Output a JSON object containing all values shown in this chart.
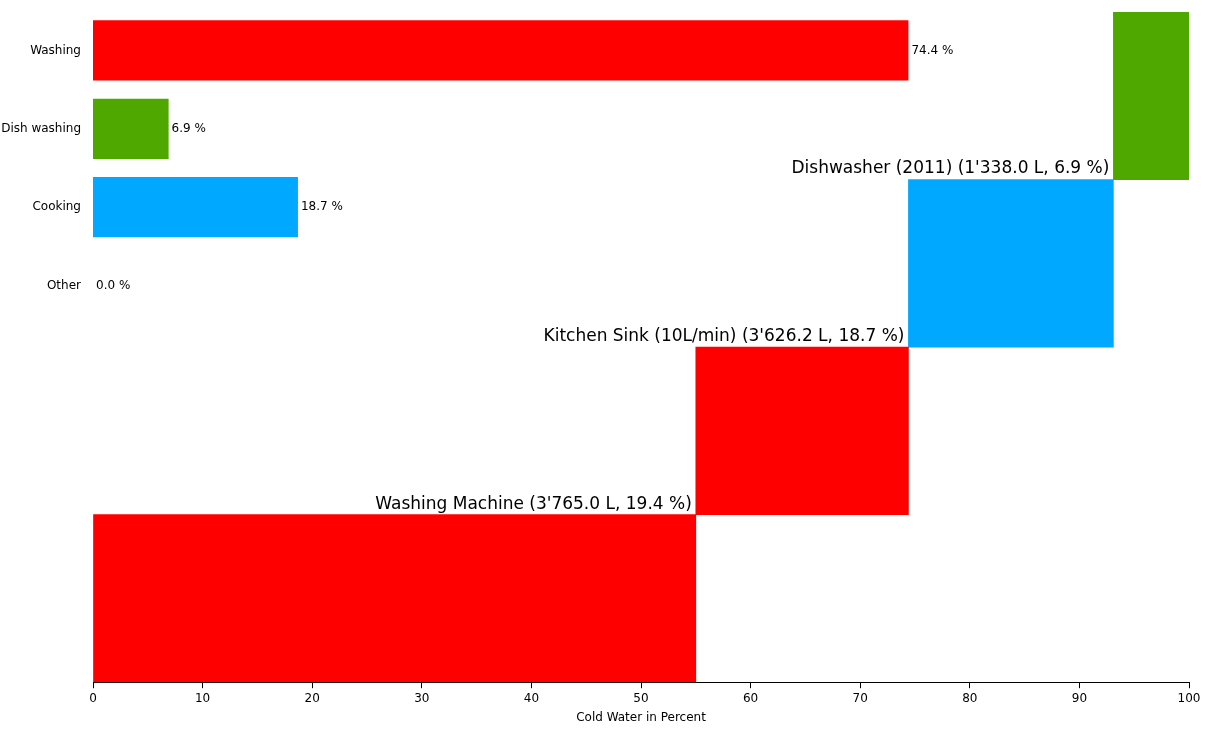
{
  "chart_data": [
    {
      "type": "bar",
      "orientation": "horizontal",
      "categories": [
        null,
        null,
        null,
        null
      ],
      "base": [
        93.1,
        74.4,
        55.0,
        0
      ],
      "values": [
        6.9,
        18.7,
        19.4,
        55.0
      ],
      "colors": [
        "#4fa800",
        "#00a8ff",
        "#ff0000",
        "#ff0000"
      ],
      "value_labels": [
        "Dishwasher (2011) (1'338.0 L, 6.9 %)",
        "Kitchen Sink (10L/min) (3'626.2 L, 18.7 %)",
        "Washing Machine (3'765.0 L, 19.4 %)",
        null
      ],
      "xlim": [
        0,
        100
      ],
      "xticks": [
        0,
        10,
        20,
        30,
        40,
        50,
        60,
        70,
        80,
        90,
        100
      ],
      "xlabel": "Cold Water in Percent",
      "tick_labels": "x"
    },
    {
      "type": "bar",
      "orientation": "horizontal",
      "categories": [
        "Washing",
        "Dish washing",
        "Cooking",
        "Other"
      ],
      "values": [
        74.4,
        6.9,
        18.7,
        0.0
      ],
      "colors": [
        "#ff0000",
        "#4fa800",
        "#00a8ff",
        "#808080"
      ],
      "value_labels": [
        "74.4 %",
        "6.9 %",
        "18.7 %",
        "0.0 %"
      ],
      "xlim": [
        0,
        100
      ],
      "xticks": [
        0,
        10,
        20,
        30,
        40,
        50,
        60,
        70,
        80,
        90,
        100
      ],
      "tick_labels": "y"
    }
  ]
}
